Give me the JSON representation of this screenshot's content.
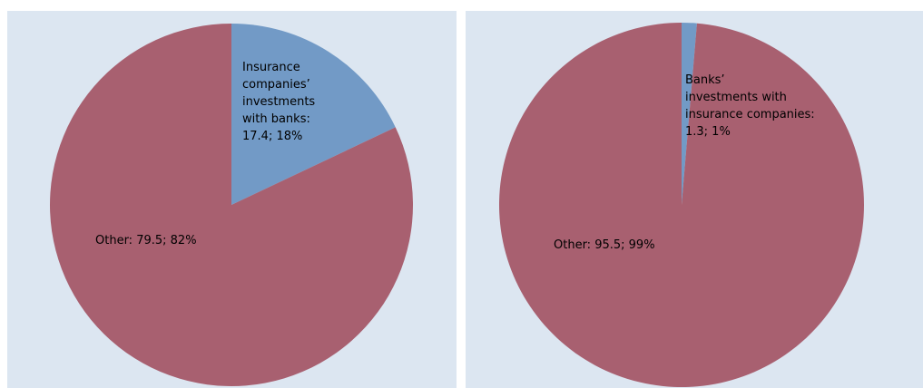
{
  "chart_data": [
    {
      "type": "pie",
      "slices": [
        {
          "name": "Insurance companies’ investments with banks",
          "value": 17.4,
          "percent": 18,
          "color": "#729ac6",
          "label_lines": [
            "Insurance",
            "companies’",
            "investments",
            "with banks:",
            "17.4; 18%"
          ]
        },
        {
          "name": "Other",
          "value": 79.5,
          "percent": 82,
          "color": "#a86070",
          "label_lines": [
            "Other: 79.5; 82%"
          ]
        }
      ]
    },
    {
      "type": "pie",
      "slices": [
        {
          "name": "Banks’ investments with insurance companies",
          "value": 1.3,
          "percent": 1,
          "color": "#729ac6",
          "label_lines": [
            "Banks’",
            "investments with",
            "insurance companies:",
            "1.3; 1%"
          ]
        },
        {
          "name": "Other",
          "value": 95.5,
          "percent": 99,
          "color": "#a86070",
          "label_lines": [
            "Other: 95.5; 99%"
          ]
        }
      ]
    }
  ]
}
